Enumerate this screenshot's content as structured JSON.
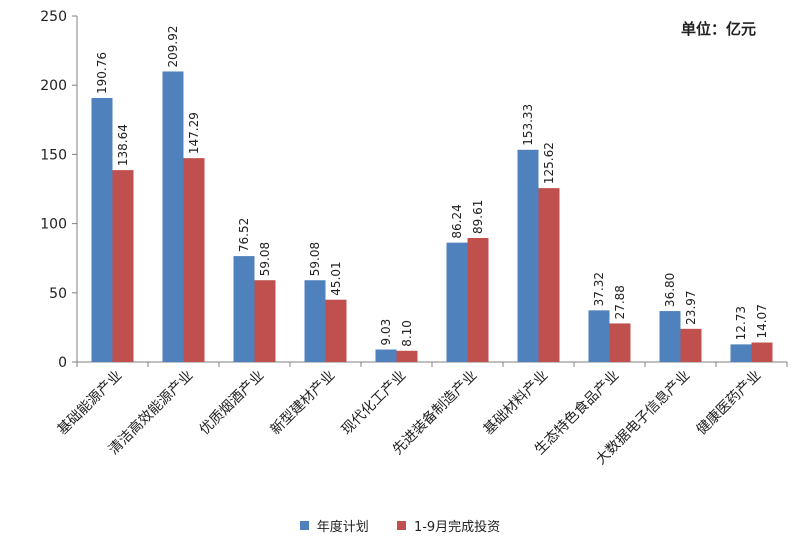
{
  "chart_data": {
    "type": "bar",
    "unit_label": "单位：亿元",
    "categories": [
      "基础能源产业",
      "清洁高效能源产业",
      "优质烟酒产业",
      "新型建材产业",
      "现代化工产业",
      "先进装备制造产业",
      "基础材料产业",
      "生态特色食品产业",
      "大数据电子信息产业",
      "健康医药产业"
    ],
    "series": [
      {
        "name": "年度计划",
        "color": "#4F81BD",
        "values": [
          190.76,
          209.92,
          76.52,
          59.08,
          9.03,
          86.24,
          153.33,
          37.32,
          36.8,
          12.73
        ]
      },
      {
        "name": "1-9月完成投资",
        "color": "#C0504D",
        "values": [
          138.64,
          147.29,
          59.08,
          45.01,
          8.1,
          89.61,
          125.62,
          27.88,
          23.97,
          14.07
        ]
      }
    ],
    "value_labels": [
      [
        "190.76",
        "209.92",
        "76.52",
        "59.08",
        "9.03",
        "86.24",
        "153.33",
        "37.32",
        "36.80",
        "12.73"
      ],
      [
        "138.64",
        "147.29",
        "59.08",
        "45.01",
        "8.10",
        "89.61",
        "125.62",
        "27.88",
        "23.97",
        "14.07"
      ]
    ],
    "ylim": [
      0,
      250
    ],
    "yticks": [
      "0",
      "50",
      "100",
      "150",
      "200",
      "250"
    ],
    "grid": false,
    "legend_position": "bottom"
  }
}
